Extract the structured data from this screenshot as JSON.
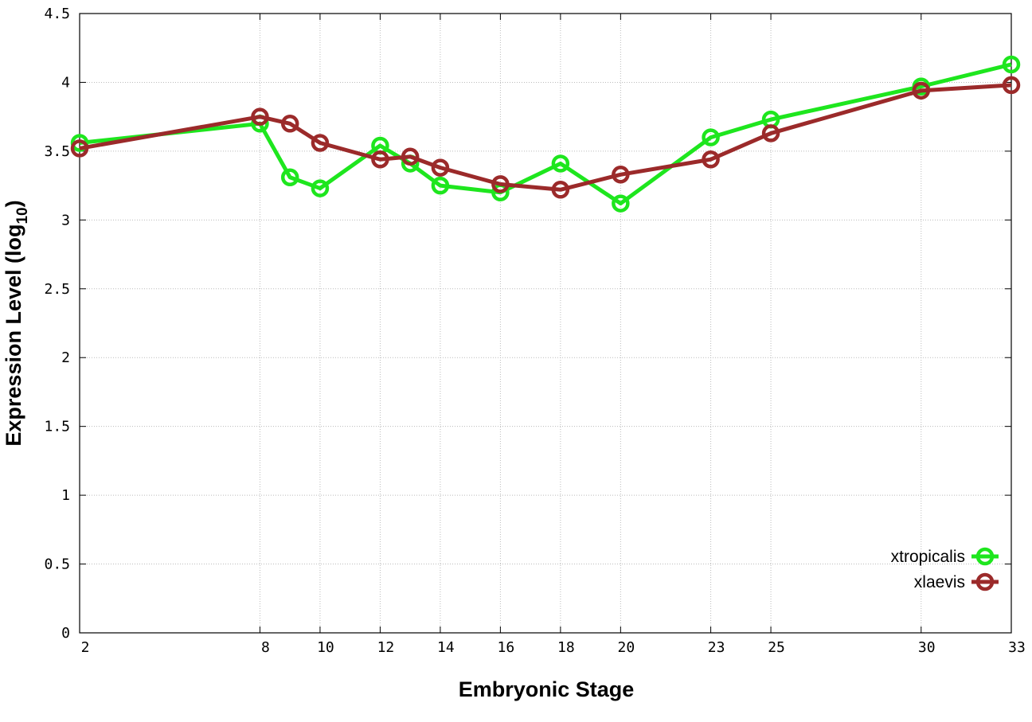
{
  "chart_data": {
    "type": "line",
    "title": "",
    "xlabel": "Embryonic Stage",
    "ylabel": {
      "text": "Expression Level (log",
      "sub": "10",
      "close": ")"
    },
    "x": [
      2,
      8,
      9,
      10,
      12,
      13,
      14,
      16,
      18,
      20,
      23,
      25,
      30,
      33
    ],
    "xticks": [
      2,
      8,
      10,
      12,
      14,
      16,
      18,
      20,
      23,
      25,
      30,
      33
    ],
    "yticks": [
      "0",
      "0.5",
      "1",
      "1.5",
      "2",
      "2.5",
      "3",
      "3.5",
      "4",
      "4.5"
    ],
    "xlim": [
      2,
      33
    ],
    "ylim": [
      0,
      4.5
    ],
    "grid": true,
    "legend_position": "bottom-right",
    "series": [
      {
        "name": "xtropicalis",
        "color": "#1ee61e",
        "values": [
          3.56,
          3.7,
          3.31,
          3.23,
          3.54,
          3.41,
          3.25,
          3.2,
          3.41,
          3.12,
          3.6,
          3.73,
          3.97,
          4.13
        ]
      },
      {
        "name": "xlaevis",
        "color": "#9b2a2a",
        "values": [
          3.52,
          3.75,
          3.7,
          3.56,
          3.44,
          3.46,
          3.38,
          3.26,
          3.22,
          3.33,
          3.44,
          3.63,
          3.94,
          3.98
        ]
      }
    ]
  }
}
